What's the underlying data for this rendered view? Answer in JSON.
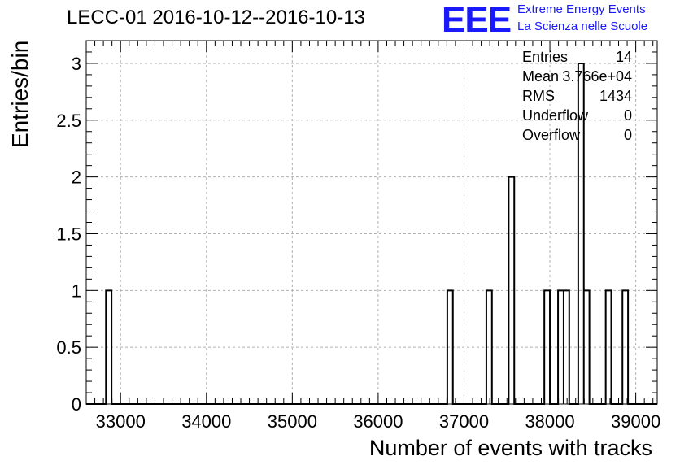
{
  "chart_data": {
    "type": "bar",
    "title": "LECC-01 2016-10-12--2016-10-13",
    "xlabel": "Number of events with tracks",
    "ylabel": "Entries/bin",
    "xlim": [
      32600,
      39250
    ],
    "ylim": [
      0,
      3.2
    ],
    "x_ticks": [
      33000,
      34000,
      35000,
      36000,
      37000,
      38000,
      39000
    ],
    "y_ticks": [
      0,
      0.5,
      1,
      1.5,
      2,
      2.5,
      3
    ],
    "y_tick_labels": [
      "0",
      "0.5",
      "1",
      "1.5",
      "2",
      "2.5",
      "3"
    ],
    "grid": true,
    "bin_width": 65,
    "bins": [
      {
        "x": 32830,
        "value": 1
      },
      {
        "x": 36805,
        "value": 1
      },
      {
        "x": 37260,
        "value": 1
      },
      {
        "x": 37520,
        "value": 2
      },
      {
        "x": 37935,
        "value": 1
      },
      {
        "x": 38095,
        "value": 1
      },
      {
        "x": 38160,
        "value": 1
      },
      {
        "x": 38330,
        "value": 3
      },
      {
        "x": 38395,
        "value": 1
      },
      {
        "x": 38650,
        "value": 1
      },
      {
        "x": 38845,
        "value": 1
      }
    ],
    "stats": [
      {
        "label": "Entries",
        "value": "14"
      },
      {
        "label": "Mean",
        "value": "3.766e+04"
      },
      {
        "label": "RMS",
        "value": "1434"
      },
      {
        "label": "Underflow",
        "value": "0"
      },
      {
        "label": "Overflow",
        "value": "0"
      }
    ]
  },
  "logo": {
    "mark": "EEE",
    "line1": "Extreme Energy Events",
    "line2": "La Scienza nelle Scuole"
  },
  "colors": {
    "logo": "#1a1aff",
    "histogram": "#000000",
    "grid": "#b0b0b0"
  }
}
